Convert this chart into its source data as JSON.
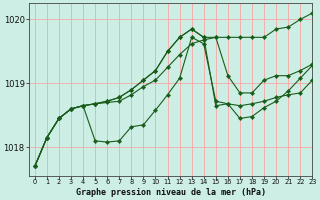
{
  "title": "Graphe pression niveau de la mer (hPa)",
  "bg_color": "#cceee4",
  "grid_color_v": "#ff9999",
  "grid_color_h": "#ff9999",
  "line_color": "#1a5c1a",
  "xlim": [
    -0.5,
    23
  ],
  "ylim": [
    1017.55,
    1020.25
  ],
  "yticks": [
    1018,
    1019,
    1020
  ],
  "xticks": [
    0,
    1,
    2,
    3,
    4,
    5,
    6,
    7,
    8,
    9,
    10,
    11,
    12,
    13,
    14,
    15,
    16,
    17,
    18,
    19,
    20,
    21,
    22,
    23
  ],
  "series": [
    [
      1017.7,
      1018.15,
      1018.45,
      1018.6,
      1018.65,
      1018.68,
      1018.7,
      1018.72,
      1018.82,
      1018.95,
      1019.05,
      1019.25,
      1019.45,
      1019.62,
      1019.68,
      1019.72,
      1019.72,
      1019.72,
      1019.72,
      1019.72,
      1019.85,
      1019.88,
      1020.0,
      1020.1
    ],
    [
      1017.7,
      1018.15,
      1018.45,
      1018.6,
      1018.65,
      1018.68,
      1018.72,
      1018.78,
      1018.9,
      1019.05,
      1019.2,
      1019.5,
      1019.72,
      1019.85,
      1019.72,
      1018.65,
      1018.68,
      1018.65,
      1018.68,
      1018.72,
      1018.78,
      1018.82,
      1018.85,
      1019.05
    ],
    [
      1017.7,
      1018.15,
      1018.45,
      1018.6,
      1018.65,
      1018.1,
      1018.08,
      1018.1,
      1018.32,
      1018.35,
      1018.58,
      1018.82,
      1019.08,
      1019.72,
      1019.62,
      1018.72,
      1018.68,
      1018.45,
      1018.48,
      1018.62,
      1018.72,
      1018.88,
      1019.08,
      1019.28
    ],
    [
      1017.7,
      1018.15,
      1018.45,
      1018.6,
      1018.65,
      1018.68,
      1018.72,
      1018.78,
      1018.9,
      1019.05,
      1019.2,
      1019.5,
      1019.72,
      1019.85,
      1019.72,
      1019.72,
      1019.12,
      1018.85,
      1018.85,
      1019.05,
      1019.12,
      1019.12,
      1019.2,
      1019.3
    ]
  ]
}
